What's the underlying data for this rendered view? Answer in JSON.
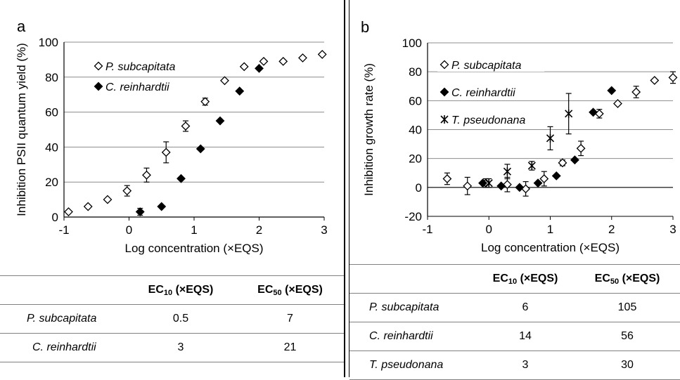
{
  "chart_data": [
    {
      "type": "scatter",
      "panel_label": "a",
      "xlabel": "Log concentration (×EQS)",
      "ylabel": "Inhibition PSII quantum yield (%)",
      "xlim": [
        -1,
        3
      ],
      "ylim": [
        0,
        100
      ],
      "xticks": [
        "-1",
        "0",
        "1",
        "2",
        "3"
      ],
      "yticks": [
        "0",
        "20",
        "40",
        "60",
        "80",
        "100"
      ],
      "grid": "horizontal",
      "legend": "top-left",
      "series": [
        {
          "name": "P. subcapitata",
          "marker": "open-diamond",
          "x": [
            -0.93,
            -0.63,
            -0.33,
            -0.03,
            0.27,
            0.57,
            0.87,
            1.17,
            1.47,
            1.77,
            2.07,
            2.37,
            2.67,
            2.97
          ],
          "y": [
            3,
            6,
            10,
            15,
            24,
            37,
            52,
            66,
            78,
            86,
            89,
            89,
            91,
            93
          ],
          "err": [
            0,
            0,
            0,
            3,
            4,
            6,
            3,
            2,
            0,
            0,
            0,
            0,
            0,
            0
          ]
        },
        {
          "name": "C. reinhardtii",
          "marker": "filled-diamond",
          "x": [
            0.17,
            0.5,
            0.8,
            1.1,
            1.4,
            1.7,
            2.0
          ],
          "y": [
            3,
            6,
            22,
            39,
            55,
            72,
            85
          ],
          "err": [
            2,
            0,
            0,
            0,
            0,
            0,
            0
          ]
        }
      ]
    },
    {
      "type": "scatter",
      "panel_label": "b",
      "xlabel": "Log concentration (×EQS)",
      "ylabel": "Inhibition growth rate (%)",
      "xlim": [
        -1,
        3
      ],
      "ylim": [
        -20,
        100
      ],
      "xticks": [
        "-1",
        "0",
        "1",
        "2",
        "3"
      ],
      "yticks": [
        "-20",
        "0",
        "20",
        "40",
        "60",
        "80",
        "100"
      ],
      "grid": "horizontal",
      "legend": "top-left",
      "series": [
        {
          "name": "P. subcapitata",
          "marker": "open-diamond",
          "x": [
            -0.68,
            -0.35,
            -0.05,
            0.3,
            0.6,
            0.9,
            1.2,
            1.5,
            1.8,
            2.1,
            2.4,
            2.7,
            3.0
          ],
          "y": [
            6,
            1,
            3,
            2,
            -1,
            6,
            17,
            27,
            51,
            58,
            66,
            74,
            76
          ],
          "err": [
            4,
            6,
            3,
            5,
            5,
            5,
            2,
            5,
            3,
            0,
            4,
            0,
            4
          ]
        },
        {
          "name": "C. reinhardtii",
          "marker": "filled-diamond",
          "x": [
            -0.1,
            0.2,
            0.5,
            0.8,
            1.1,
            1.4,
            1.7,
            2.0
          ],
          "y": [
            3,
            1,
            0,
            3,
            8,
            19,
            52,
            67
          ],
          "err": [
            0,
            0,
            0,
            0,
            0,
            0,
            0,
            0
          ]
        },
        {
          "name": "T. pseudonana",
          "marker": "cross",
          "x": [
            0,
            0.3,
            0.7,
            1.0,
            1.3
          ],
          "y": [
            3,
            11,
            15,
            34,
            51
          ],
          "err": [
            3,
            5,
            3,
            8,
            14
          ]
        }
      ]
    }
  ],
  "table_a": {
    "headers": [
      "",
      "EC10 (×EQS)",
      "EC50 (×EQS)"
    ],
    "rows": [
      {
        "species": "P. subcapitata",
        "ec10": "0.5",
        "ec50": "7"
      },
      {
        "species": "C. reinhardtii",
        "ec10": "3",
        "ec50": "21"
      }
    ]
  },
  "table_b": {
    "headers": [
      "",
      "EC10 (×EQS)",
      "EC50 (×EQS)"
    ],
    "rows": [
      {
        "species": "P. subcapitata",
        "ec10": "6",
        "ec50": "105"
      },
      {
        "species": "C. reinhardtii",
        "ec10": "14",
        "ec50": "56"
      },
      {
        "species": "T. pseudonana",
        "ec10": "3",
        "ec50": "30"
      }
    ]
  },
  "ec_label": "EC",
  "ec10_sub": "10",
  "ec50_sub": "50",
  "ec_unit": " (×EQS)"
}
